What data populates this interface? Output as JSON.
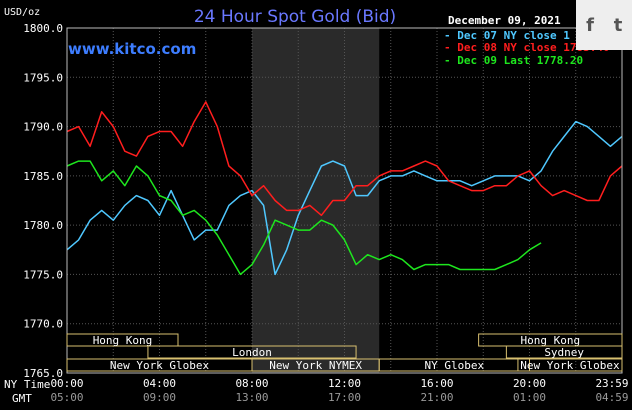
{
  "title": "24 Hour Spot Gold (Bid)",
  "site": "www.kitco.com",
  "unit": "USD/oz",
  "date": "December 09, 2021",
  "share": {
    "facebook": "f",
    "twitter": "t"
  },
  "xlabels_ny": [
    "00:00",
    "04:00",
    "08:00",
    "12:00",
    "16:00",
    "20:00",
    "23:59"
  ],
  "xlabels_gmt": [
    "05:00",
    "09:00",
    "13:00",
    "17:00",
    "21:00",
    "01:00",
    "04:59"
  ],
  "row_label_ny": "NY Time",
  "row_label_gmt": "GMT",
  "sessions": [
    {
      "label": "Hong Kong",
      "row": 0
    },
    {
      "label": "London",
      "row": 1
    },
    {
      "label": "New York Globex",
      "row": 2
    },
    {
      "label": "New York NYMEX",
      "row": 2
    },
    {
      "label": "NY Globex",
      "row": 2
    },
    {
      "label": "Hong Kong",
      "row": 0
    },
    {
      "label": "Sydney",
      "row": 1
    },
    {
      "label": "New York Globex",
      "row": 2
    }
  ],
  "colors": {
    "dec07": "#4fc8ff",
    "dec08": "#ff1e1e",
    "dec09": "#1ee61e",
    "title": "#6a78ff"
  },
  "chart_data": {
    "type": "line",
    "title": "24 Hour Spot Gold (Bid)",
    "ylabel": "USD/oz",
    "ylim": [
      1765.0,
      1800.0
    ],
    "yticks": [
      1765.0,
      1770.0,
      1775.0,
      1780.0,
      1785.0,
      1790.0,
      1795.0,
      1800.0
    ],
    "xlim": [
      0,
      24
    ],
    "grid": true,
    "legend": "top-right",
    "series": [
      {
        "name": "Dec 07 NY close 1",
        "color": "#4fc8ff",
        "x": [
          0,
          0.5,
          1,
          1.5,
          2,
          2.5,
          3,
          3.5,
          4,
          4.5,
          5,
          5.5,
          6,
          6.5,
          7,
          7.5,
          8,
          8.5,
          9,
          9.5,
          10,
          10.5,
          11,
          11.5,
          12,
          12.5,
          13,
          13.5,
          14,
          14.5,
          15,
          15.5,
          16,
          16.5,
          17,
          17.5,
          18,
          18.5,
          19,
          19.5,
          20,
          20.5,
          21,
          21.5,
          22,
          22.5,
          23,
          23.5,
          24
        ],
        "y": [
          1777.5,
          1778.5,
          1780.5,
          1781.5,
          1780.5,
          1782.0,
          1783.0,
          1782.5,
          1781.0,
          1783.5,
          1781.0,
          1778.5,
          1779.5,
          1779.5,
          1782.0,
          1783.0,
          1783.5,
          1782.0,
          1775.0,
          1777.5,
          1781.0,
          1783.5,
          1786.0,
          1786.5,
          1786.0,
          1783.0,
          1783.0,
          1784.5,
          1785.0,
          1785.0,
          1785.5,
          1785.0,
          1784.5,
          1784.5,
          1784.5,
          1784.0,
          1784.5,
          1785.0,
          1785.0,
          1785.0,
          1784.5,
          1785.5,
          1787.5,
          1789.0,
          1790.5,
          1790.0,
          1789.0,
          1788.0,
          1789.0
        ]
      },
      {
        "name": "Dec 08 NY close",
        "value_label": "1783.40",
        "color": "#ff1e1e",
        "x": [
          0,
          0.5,
          1,
          1.5,
          2,
          2.5,
          3,
          3.5,
          4,
          4.5,
          5,
          5.5,
          6,
          6.5,
          7,
          7.5,
          8,
          8.5,
          9,
          9.5,
          10,
          10.5,
          11,
          11.5,
          12,
          12.5,
          13,
          13.5,
          14,
          14.5,
          15,
          15.5,
          16,
          16.5,
          17,
          17.5,
          18,
          18.5,
          19,
          19.5,
          20,
          20.5,
          21,
          21.5,
          22,
          22.5,
          23,
          23.5,
          24
        ],
        "y": [
          1789.5,
          1790.0,
          1788.0,
          1791.5,
          1790.0,
          1787.5,
          1787.0,
          1789.0,
          1789.5,
          1789.5,
          1788.0,
          1790.5,
          1792.5,
          1790.0,
          1786.0,
          1785.0,
          1783.0,
          1784.0,
          1782.5,
          1781.5,
          1781.5,
          1782.0,
          1781.0,
          1782.5,
          1782.5,
          1784.0,
          1784.0,
          1785.0,
          1785.5,
          1785.5,
          1786.0,
          1786.5,
          1786.0,
          1784.5,
          1784.0,
          1783.5,
          1783.5,
          1784.0,
          1784.0,
          1785.0,
          1785.5,
          1784.0,
          1783.0,
          1783.5,
          1783.0,
          1782.5,
          1782.5,
          1785.0,
          1786.0
        ]
      },
      {
        "name": "Dec 09 Last",
        "value_label": "1778.20",
        "color": "#1ee61e",
        "x": [
          0,
          0.5,
          1,
          1.5,
          2,
          2.5,
          3,
          3.5,
          4,
          4.5,
          5,
          5.5,
          6,
          6.5,
          7,
          7.5,
          8,
          8.5,
          9,
          9.5,
          10,
          10.5,
          11,
          11.5,
          12,
          12.5,
          13,
          13.5,
          14,
          14.5,
          15,
          15.5,
          16,
          16.5,
          17,
          17.5,
          18,
          18.5,
          19,
          19.5,
          20,
          20.5
        ],
        "y": [
          1786.0,
          1786.5,
          1786.5,
          1784.5,
          1785.5,
          1784.0,
          1786.0,
          1785.0,
          1783.0,
          1782.5,
          1781.0,
          1781.5,
          1780.5,
          1779.0,
          1777.0,
          1775.0,
          1776.0,
          1778.0,
          1780.5,
          1780.0,
          1779.5,
          1779.5,
          1780.5,
          1780.0,
          1778.5,
          1776.0,
          1777.0,
          1776.5,
          1777.0,
          1776.5,
          1775.5,
          1776.0,
          1776.0,
          1776.0,
          1775.5,
          1775.5,
          1775.5,
          1775.5,
          1776.0,
          1776.5,
          1777.5,
          1778.2
        ]
      }
    ]
  }
}
